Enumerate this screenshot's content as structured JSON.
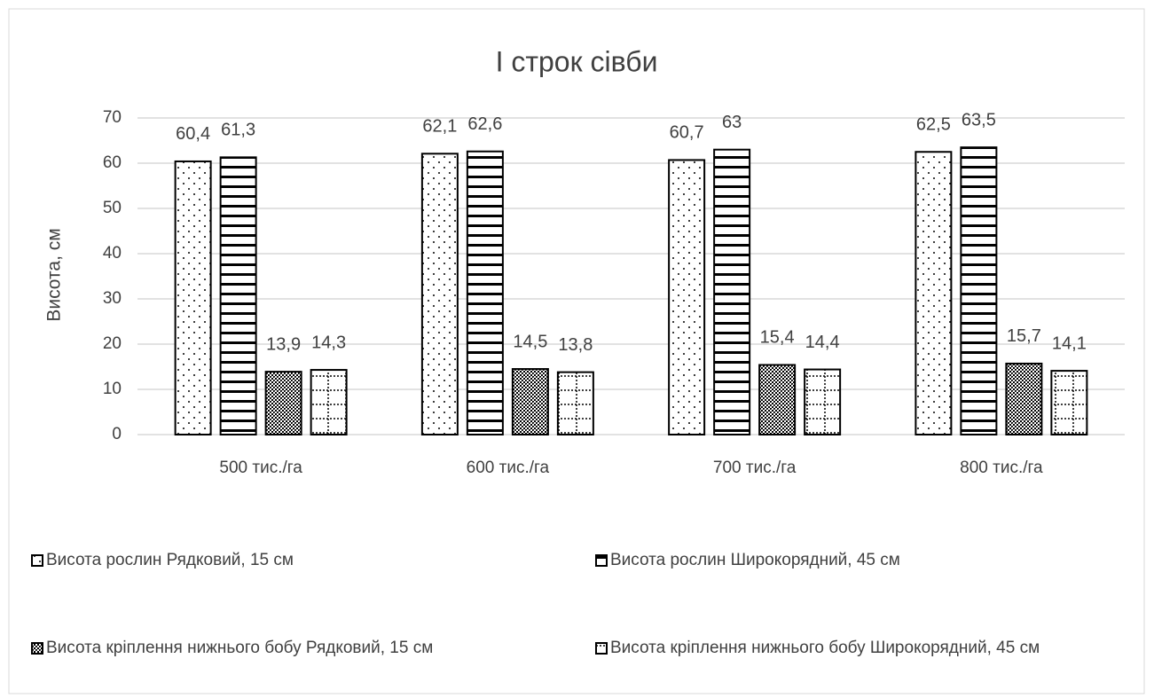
{
  "chart_data": {
    "type": "bar",
    "title": "І строк сівби",
    "y_label": "Висота, см",
    "categories": [
      "500 тис./га",
      "600 тис./га",
      "700 тис./га",
      "800 тис./га"
    ],
    "series": [
      {
        "name": "Висота рослин Рядковий, 15 см",
        "values": [
          60.4,
          62.1,
          60.7,
          62.5
        ],
        "value_labels": [
          "60,4",
          "62,1",
          "60,7",
          "62,5"
        ]
      },
      {
        "name": "Висота рослин Широкорядний, 45 см",
        "values": [
          61.3,
          62.6,
          63,
          63.5
        ],
        "value_labels": [
          "61,3",
          "62,6",
          "63",
          "63,5"
        ]
      },
      {
        "name": "Висота кріплення нижнього бобу Рядковий, 15 см",
        "values": [
          13.9,
          14.5,
          15.4,
          15.7
        ],
        "value_labels": [
          "13,9",
          "14,5",
          "15,4",
          "15,7"
        ]
      },
      {
        "name": "Висота кріплення нижнього бобу Широкорядний, 45 см",
        "values": [
          14.3,
          13.8,
          14.4,
          14.1
        ],
        "value_labels": [
          "14,3",
          "13,8",
          "14,4",
          "14,1"
        ]
      }
    ],
    "ylim": [
      0,
      70
    ],
    "yticks": [
      0,
      10,
      20,
      30,
      40,
      50,
      60,
      70
    ],
    "grid": true
  }
}
